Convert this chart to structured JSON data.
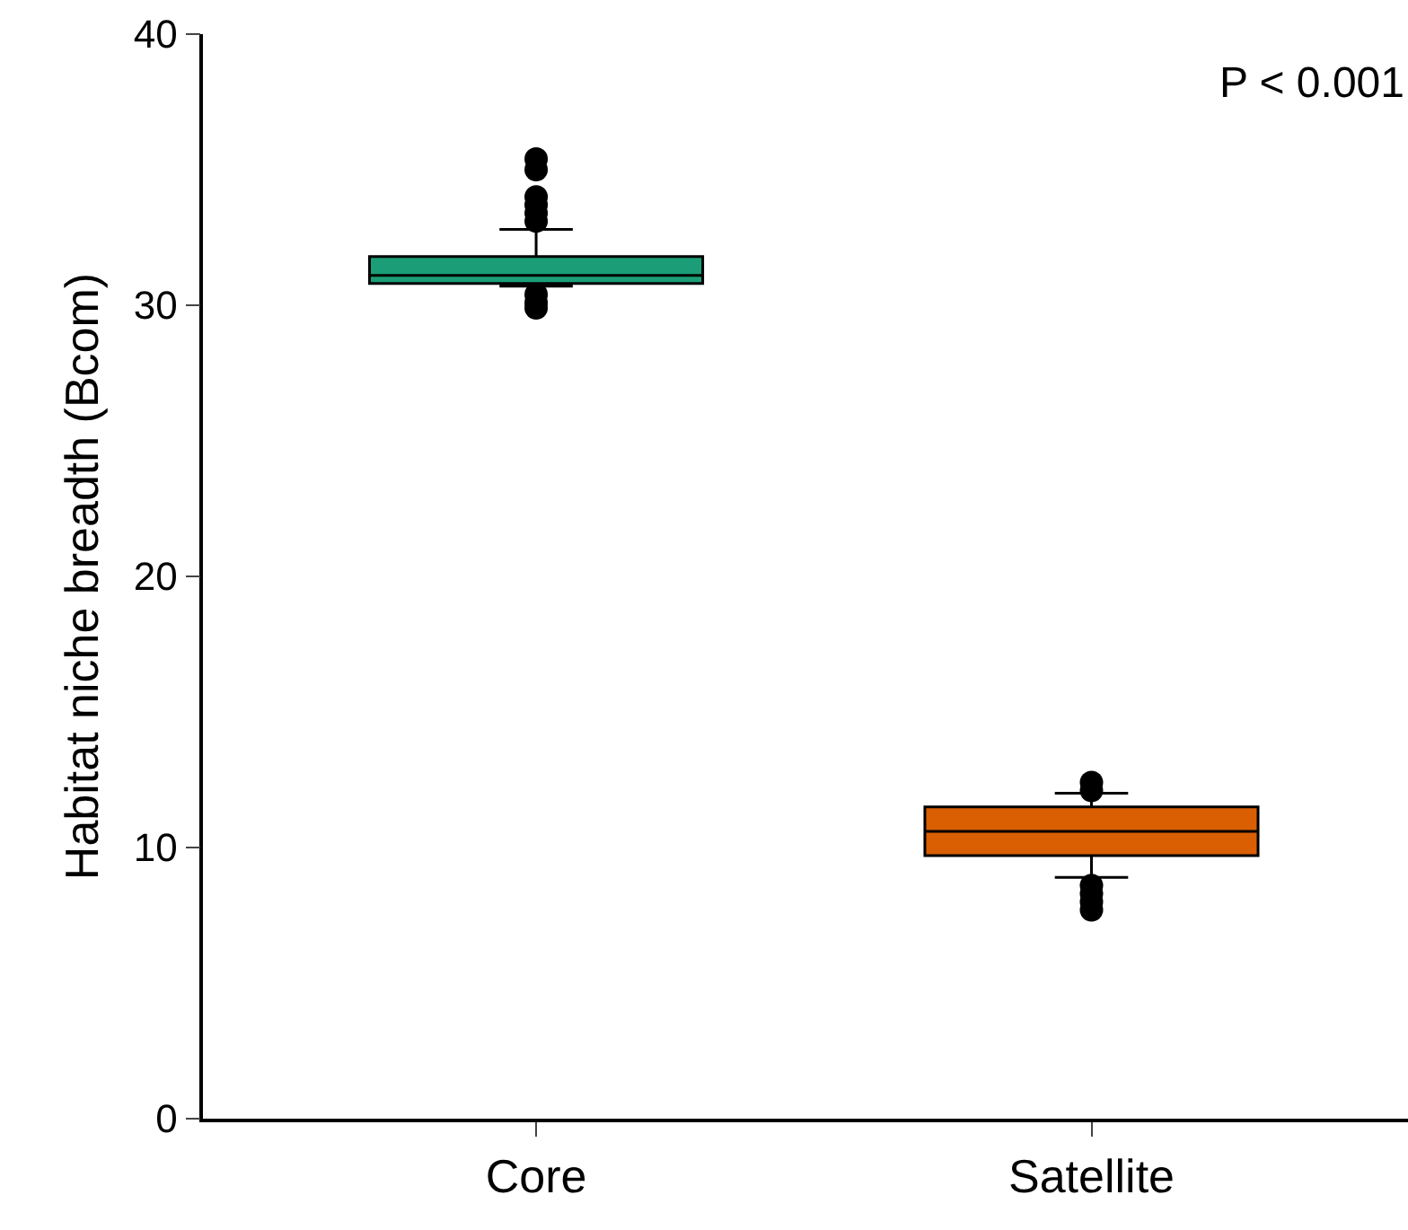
{
  "chart_data": {
    "type": "box",
    "ylabel": "Habitat niche breadth (Bcom)",
    "categories": [
      "Core",
      "Satellite"
    ],
    "colors": [
      "#1b9e77",
      "#d95f02"
    ],
    "boxes": [
      {
        "low": 30.7,
        "q1": 30.8,
        "median": 31.1,
        "q3": 31.8,
        "high": 32.8,
        "outliers": [
          29.9,
          30.1,
          30.4,
          33.1,
          33.4,
          33.7,
          34.0,
          35.0,
          35.4
        ]
      },
      {
        "low": 8.9,
        "q1": 9.7,
        "median": 10.6,
        "q3": 11.5,
        "high": 12.0,
        "outliers": [
          7.7,
          8.0,
          8.3,
          8.6,
          12.1,
          12.4
        ]
      }
    ],
    "ylim": [
      0,
      40
    ],
    "yticks": [
      0,
      10,
      20,
      30,
      40
    ],
    "annotations": [
      "P < 0.001"
    ]
  }
}
